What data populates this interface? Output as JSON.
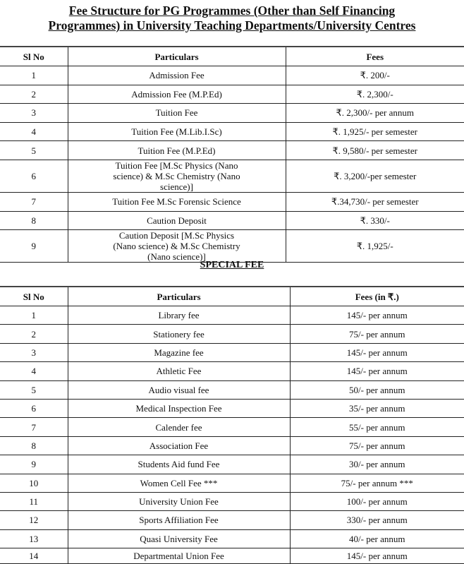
{
  "title_line1": "Fee Structure for PG Programmes (Other than Self Financing",
  "title_line2": "Programmes) in University Teaching Departments/University Centres",
  "table1": {
    "headers": [
      "Sl No",
      "Particulars",
      "Fees"
    ],
    "rows": [
      {
        "sl": "1",
        "particular": "Admission Fee",
        "fee": "₹. 200/-"
      },
      {
        "sl": "2",
        "particular": "Admission Fee (M.P.Ed)",
        "fee": "₹. 2,300/-"
      },
      {
        "sl": "3",
        "particular": "Tuition Fee",
        "fee": "₹. 2,300/- per annum"
      },
      {
        "sl": "4",
        "particular": "Tuition Fee (M.Lib.I.Sc)",
        "fee": "₹. 1,925/- per semester"
      },
      {
        "sl": "5",
        "particular": "Tuition Fee (M.P.Ed)",
        "fee": "₹. 9,580/- per semester"
      },
      {
        "sl": "6",
        "particular": "Tuition Fee [M.Sc Physics (Nano science) & M.Sc Chemistry (Nano science)]",
        "fee": "₹. 3,200/-per semester"
      },
      {
        "sl": "7",
        "particular": "Tuition Fee  M.Sc   Forensic Science",
        "fee": "₹.34,730/- per semester"
      },
      {
        "sl": "8",
        "particular": "Caution Deposit",
        "fee": "₹. 330/-"
      },
      {
        "sl": "9",
        "particular": "Caution Deposit [M.Sc Physics (Nano science) & M.Sc Chemistry (Nano science)]",
        "fee": "₹. 1,925/-"
      }
    ]
  },
  "special_fee_heading": "SPECIAL FEE",
  "table2": {
    "headers": [
      "Sl No",
      "Particulars",
      "Fees (in ₹.)"
    ],
    "rows": [
      {
        "sl": "1",
        "particular": "Library fee",
        "fee": "145/- per annum"
      },
      {
        "sl": "2",
        "particular": "Stationery fee",
        "fee": "75/- per annum"
      },
      {
        "sl": "3",
        "particular": "Magazine fee",
        "fee": "145/- per annum"
      },
      {
        "sl": "4",
        "particular": "Athletic Fee",
        "fee": "145/- per annum"
      },
      {
        "sl": "5",
        "particular": "Audio visual fee",
        "fee": "50/- per annum"
      },
      {
        "sl": "6",
        "particular": "Medical Inspection Fee",
        "fee": "35/- per annum"
      },
      {
        "sl": "7",
        "particular": "Calender fee",
        "fee": "55/- per annum"
      },
      {
        "sl": "8",
        "particular": "Association Fee",
        "fee": "75/- per annum"
      },
      {
        "sl": "9",
        "particular": "Students Aid fund Fee",
        "fee": "30/- per annum"
      },
      {
        "sl": "10",
        "particular": "Women Cell Fee ***",
        "fee": "75/- per annum ***"
      },
      {
        "sl": "11",
        "particular": "University Union Fee",
        "fee": "100/- per annum"
      },
      {
        "sl": "12",
        "particular": "Sports Affiliation Fee",
        "fee": "330/- per annum"
      },
      {
        "sl": "13",
        "particular": "Quasi University Fee",
        "fee": "40/- per annum"
      },
      {
        "sl": "14",
        "particular": "Departmental Union Fee",
        "fee": "145/- per annum"
      }
    ]
  }
}
